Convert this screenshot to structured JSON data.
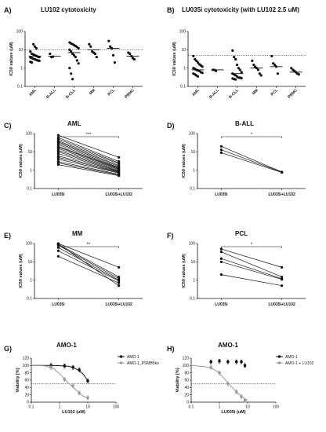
{
  "chart_data": [
    {
      "id": "A",
      "panel_label": "A)",
      "type": "scatter",
      "title": "LU102 cytotoxicity",
      "ylabel": "IC50 values (uM)",
      "yscale": "log",
      "ylim": [
        0.1,
        100
      ],
      "yticks": [
        "0.1",
        "1",
        "10",
        "100"
      ],
      "ytick_values": [
        0.1,
        1,
        10,
        100
      ],
      "reference_line": 10,
      "categories": [
        "AML",
        "B-ALL",
        "B-CLL",
        "MM",
        "PCL",
        "PBMC"
      ],
      "points": [
        [
          8,
          6,
          5.5,
          5,
          4.6,
          4.2,
          4,
          3.8,
          3.5,
          3.2,
          3,
          2.8,
          2.6,
          2.5,
          2.2,
          2,
          20,
          15,
          12
        ],
        [
          6,
          4,
          4.2
        ],
        [
          25,
          22,
          20,
          18,
          16,
          14,
          12,
          10,
          8,
          6,
          5,
          4,
          2.6,
          1.8,
          1,
          0.5,
          0.25
        ],
        [
          20,
          15,
          8,
          7,
          6,
          4
        ],
        [
          30,
          15,
          12,
          5,
          2
        ],
        [
          7,
          6,
          4.5,
          3.5,
          3
        ]
      ],
      "medians": [
        4.5,
        4.5,
        7,
        10,
        12,
        4.5
      ]
    },
    {
      "id": "B",
      "panel_label": "B)",
      "type": "scatter",
      "title": "LU035i cytotoxicity (with LU102 2.5 uM)",
      "ylabel": "IC50 values (uM)",
      "yscale": "log",
      "ylim": [
        0.1,
        100
      ],
      "yticks": [
        "0.1",
        "1",
        "10",
        "100"
      ],
      "ytick_values": [
        0.1,
        1,
        10,
        100
      ],
      "reference_line": 5,
      "categories": [
        "AML",
        "B-ALL",
        "B-CLL",
        "MM",
        "PCL",
        "PBMC"
      ],
      "points": [
        [
          4.5,
          3,
          2.5,
          2,
          1.6,
          1.4,
          1.2,
          1,
          0.9,
          0.8,
          0.75,
          0.7,
          0.6,
          0.55,
          0.5,
          0.45,
          0.4,
          0.35
        ],
        [
          0.8,
          0.8,
          0.7
        ],
        [
          9,
          4,
          3,
          1.5,
          1,
          0.8,
          0.6,
          0.5,
          0.45,
          0.4,
          0.35,
          0.3,
          0.3,
          0.28,
          0.27,
          0.25,
          0.24
        ],
        [
          2.5,
          1.5,
          1.2,
          1,
          0.8,
          0.5,
          0.4
        ],
        [
          4.5,
          1.8,
          1.5,
          1.2,
          0.5
        ],
        [
          1,
          0.8,
          0.7,
          0.6,
          0.5,
          0.45
        ]
      ],
      "medians": [
        0.8,
        0.8,
        0.5,
        1,
        1.2,
        0.6
      ]
    },
    {
      "id": "C",
      "panel_label": "C)",
      "type": "line",
      "title": "AML",
      "ylabel": "IC50 values (uM)",
      "yscale": "log",
      "ylim": [
        0.1,
        100
      ],
      "yticks": [
        "0.1",
        "1",
        "10",
        "100"
      ],
      "ytick_values": [
        0.1,
        1,
        10,
        100
      ],
      "categories": [
        "LU035i",
        "LU035i+LU102"
      ],
      "significance": "***",
      "pairs": [
        [
          80,
          5
        ],
        [
          60,
          3
        ],
        [
          50,
          2.5
        ],
        [
          40,
          2.2
        ],
        [
          35,
          1.8
        ],
        [
          30,
          1.6
        ],
        [
          25,
          1.4
        ],
        [
          20,
          1.3
        ],
        [
          18,
          1.2
        ],
        [
          15,
          1.1
        ],
        [
          12,
          1
        ],
        [
          10,
          0.9
        ],
        [
          8,
          0.85
        ],
        [
          6,
          0.8
        ],
        [
          5,
          0.75
        ],
        [
          4,
          0.7
        ],
        [
          3,
          0.6
        ],
        [
          2.5,
          0.55
        ],
        [
          2,
          0.5
        ]
      ]
    },
    {
      "id": "D",
      "panel_label": "D)",
      "type": "line",
      "title": "B-ALL",
      "ylabel": "IC50 values (uM)",
      "yscale": "log",
      "ylim": [
        0.1,
        100
      ],
      "yticks": [
        "0.1",
        "1",
        "10",
        "100"
      ],
      "ytick_values": [
        0.1,
        1,
        10,
        100
      ],
      "categories": [
        "LU035i",
        "LU035i+LU102"
      ],
      "significance": "*",
      "pairs": [
        [
          20,
          0.8
        ],
        [
          13,
          0.78
        ],
        [
          9,
          0.75
        ]
      ]
    },
    {
      "id": "E",
      "panel_label": "E)",
      "type": "line",
      "title": "MM",
      "ylabel": "IC50 values (uM)",
      "yscale": "log",
      "ylim": [
        0.1,
        100
      ],
      "yticks": [
        "0.1",
        "1",
        "10",
        "100"
      ],
      "ytick_values": [
        0.1,
        1,
        10,
        100
      ],
      "categories": [
        "LU035i",
        "LU035i+LU102"
      ],
      "significance": "**",
      "pairs": [
        [
          100,
          5
        ],
        [
          90,
          1.5
        ],
        [
          80,
          1.2
        ],
        [
          60,
          1
        ],
        [
          40,
          0.9
        ],
        [
          20,
          0.7
        ],
        [
          95,
          0.5
        ]
      ]
    },
    {
      "id": "F",
      "panel_label": "F)",
      "type": "line",
      "title": "PCL",
      "ylabel": "IC50 values (uM)",
      "yscale": "log",
      "ylim": [
        0.1,
        100
      ],
      "yticks": [
        "0.1",
        "1",
        "10",
        "100"
      ],
      "ytick_values": [
        0.1,
        1,
        10,
        100
      ],
      "categories": [
        "LU035i",
        "LU035i+LU102"
      ],
      "significance": "*",
      "pairs": [
        [
          50,
          5
        ],
        [
          35,
          1.5
        ],
        [
          15,
          1.2
        ],
        [
          10,
          1.1
        ],
        [
          2,
          0.5
        ]
      ]
    },
    {
      "id": "G",
      "panel_label": "G)",
      "type": "line",
      "title": "AMO-1",
      "ylabel": "Viability [%]",
      "xlabel": "LU102 (uM)",
      "xscale": "log",
      "xlim": [
        0.1,
        100
      ],
      "xticks": [
        "0.1",
        "1",
        "10",
        "100"
      ],
      "xtick_values": [
        0.1,
        1,
        10,
        100
      ],
      "ylim": [
        0,
        120
      ],
      "yticks": [
        "0",
        "20",
        "40",
        "60",
        "80",
        "100",
        "120"
      ],
      "ytick_values": [
        0,
        20,
        40,
        60,
        80,
        100,
        120
      ],
      "reference_line": 50,
      "legend_position": "top-right",
      "series": [
        {
          "name": "AMO-1",
          "color": "#111111",
          "x": [
            0.5,
            1.5,
            3,
            5,
            10
          ],
          "y": [
            100,
            99,
            95,
            88,
            58
          ]
        },
        {
          "name": "AMO-1_PSMB5ko",
          "color": "#999999",
          "x": [
            0.5,
            1.5,
            3,
            5,
            10
          ],
          "y": [
            95,
            62,
            45,
            25,
            12
          ]
        }
      ],
      "curves": [
        {
          "color": "#111111",
          "x": [
            0.1,
            0.5,
            1,
            2,
            3,
            5,
            7,
            10
          ],
          "y": [
            100,
            100,
            99.5,
            98,
            95,
            86,
            76,
            58
          ]
        },
        {
          "color": "#999999",
          "x": [
            0.1,
            0.3,
            0.6,
            1,
            1.5,
            2,
            3,
            4,
            5,
            7,
            10
          ],
          "y": [
            100,
            99,
            92,
            78,
            63,
            53,
            41,
            32,
            25,
            16,
            12
          ]
        }
      ]
    },
    {
      "id": "H",
      "panel_label": "H)",
      "type": "line",
      "title": "AMO-1",
      "ylabel": "Viability [%]",
      "xlabel": "LU035i (uM)",
      "xscale": "log",
      "xlim": [
        0.1,
        100
      ],
      "xticks": [
        "0.1",
        "1",
        "10",
        "100"
      ],
      "xtick_values": [
        0.1,
        1,
        10,
        100
      ],
      "ylim": [
        0,
        120
      ],
      "yticks": [
        "0",
        "20",
        "40",
        "60",
        "80",
        "100",
        "120"
      ],
      "ytick_values": [
        0,
        20,
        40,
        60,
        80,
        100,
        120
      ],
      "reference_line": 50,
      "legend_position": "top-right",
      "series": [
        {
          "name": "AMO-1",
          "color": "#111111",
          "x": [
            0.5,
            1,
            2,
            4,
            6,
            8
          ],
          "y": [
            110,
            112,
            110,
            110,
            110,
            100
          ]
        },
        {
          "name": "AMO-1 + LU102",
          "color": "#999999",
          "x": [
            0.5,
            1,
            2,
            4,
            6,
            8
          ],
          "y": [
            95,
            80,
            50,
            28,
            15,
            5
          ]
        }
      ],
      "curves": [
        {
          "color": "#999999",
          "x": [
            0.1,
            0.3,
            0.5,
            0.8,
            1,
            1.5,
            2,
            3,
            4,
            6,
            8,
            10
          ],
          "y": [
            100,
            97,
            93,
            85,
            78,
            64,
            53,
            38,
            28,
            16,
            9,
            5
          ]
        }
      ]
    }
  ]
}
